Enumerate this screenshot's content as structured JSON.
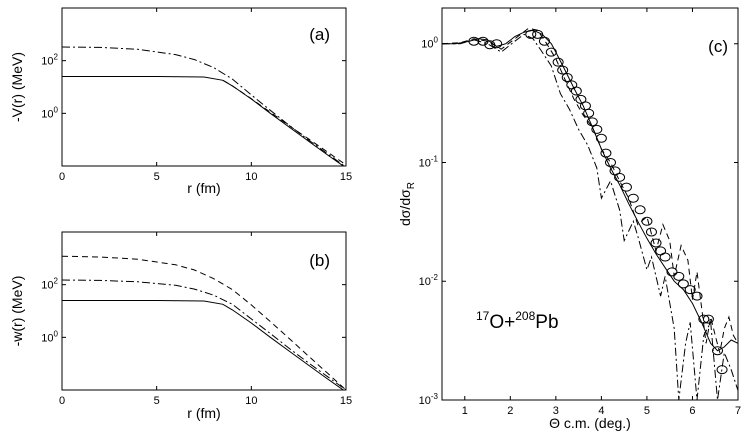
{
  "chart_data": [
    {
      "type": "line",
      "panel_label": "(a)",
      "xlabel": "r (fm)",
      "ylabel": "-V(r) (MeV)",
      "xlim": [
        0,
        15
      ],
      "ylim": [
        0.01,
        10000
      ],
      "yscale": "log",
      "xticks": [
        0,
        5,
        10,
        15
      ],
      "yticks": [
        {
          "value": 1,
          "mantissa": "10",
          "exponent": "0"
        },
        {
          "value": 100,
          "mantissa": "10",
          "exponent": "2"
        }
      ],
      "series": [
        {
          "name": "solid",
          "style": "solid",
          "x": [
            0,
            5,
            7.5,
            8.5,
            9,
            10,
            11,
            12,
            13,
            14,
            15
          ],
          "y": [
            25,
            25,
            24,
            18,
            11,
            3.5,
            1.0,
            0.3,
            0.09,
            0.027,
            0.0085
          ]
        },
        {
          "name": "dash-dot",
          "style": "dashdot",
          "x": [
            0,
            2,
            4,
            6,
            7,
            8,
            9,
            10,
            11,
            12,
            13,
            14,
            15
          ],
          "y": [
            330,
            320,
            270,
            170,
            110,
            55,
            20,
            5,
            1.3,
            0.35,
            0.1,
            0.03,
            0.009
          ]
        },
        {
          "name": "dashed",
          "style": "dashed",
          "x": [
            8.5,
            9,
            10,
            11,
            12,
            13,
            14,
            15
          ],
          "y": [
            18,
            11,
            3.6,
            1.1,
            0.34,
            0.11,
            0.035,
            0.011
          ]
        }
      ]
    },
    {
      "type": "line",
      "panel_label": "(b)",
      "xlabel": "r (fm)",
      "ylabel": "-w(r) (MeV)",
      "xlim": [
        0,
        15
      ],
      "ylim": [
        0.01,
        10000
      ],
      "yscale": "log",
      "xticks": [
        0,
        5,
        10,
        15
      ],
      "yticks": [
        {
          "value": 1,
          "mantissa": "10",
          "exponent": "0"
        },
        {
          "value": 100,
          "mantissa": "10",
          "exponent": "2"
        }
      ],
      "series": [
        {
          "name": "solid",
          "style": "solid",
          "x": [
            0,
            5,
            7.5,
            8.5,
            9,
            10,
            11,
            12,
            13,
            14,
            15
          ],
          "y": [
            25,
            25,
            24,
            18,
            11,
            3.5,
            1.0,
            0.3,
            0.09,
            0.027,
            0.0085
          ]
        },
        {
          "name": "dash-dot",
          "style": "dashdot",
          "x": [
            0,
            2,
            4,
            6,
            7,
            8,
            9,
            10,
            11,
            12,
            13,
            14,
            15
          ],
          "y": [
            150,
            145,
            128,
            95,
            68,
            40,
            18,
            5,
            1.4,
            0.38,
            0.11,
            0.033,
            0.01
          ]
        },
        {
          "name": "dashed",
          "style": "dashed",
          "x": [
            0,
            2,
            4,
            6,
            7,
            8,
            9,
            10,
            11,
            12,
            13,
            14,
            15
          ],
          "y": [
            1200,
            1120,
            930,
            570,
            360,
            170,
            65,
            17,
            4,
            0.9,
            0.2,
            0.045,
            0.01
          ]
        }
      ]
    },
    {
      "type": "line",
      "panel_label": "(c)",
      "annotation": {
        "sup1": "17",
        "base1": "O+",
        "sup2": "208",
        "base2": "Pb"
      },
      "xlabel": "Θ c.m. (deg.)",
      "ylabel": {
        "main": "dσ/dσ",
        "sub": "R"
      },
      "xlim": [
        0.5,
        7
      ],
      "ylim": [
        0.001,
        2
      ],
      "yscale": "log",
      "xticks": [
        1,
        2,
        3,
        4,
        5,
        6,
        7
      ],
      "yticks": [
        {
          "value": 1,
          "mantissa": "10",
          "exponent": "0"
        },
        {
          "value": 0.1,
          "mantissa": "10",
          "exponent": "-1"
        },
        {
          "value": 0.01,
          "mantissa": "10",
          "exponent": "-2"
        },
        {
          "value": 0.001,
          "mantissa": "10",
          "exponent": "-3"
        }
      ],
      "series": [
        {
          "name": "solid",
          "style": "solid",
          "x": [
            0.5,
            0.8,
            1.1,
            1.3,
            1.5,
            1.7,
            1.9,
            2.1,
            2.3,
            2.5,
            2.7,
            2.9,
            3.0,
            3.2,
            3.4,
            3.6,
            3.8,
            4.0,
            4.2,
            4.4,
            4.6,
            4.8,
            5.0,
            5.2,
            5.4,
            5.6,
            5.8,
            6.0,
            6.2,
            6.4,
            6.55,
            6.7,
            6.85,
            7.0
          ],
          "y": [
            1.0,
            1.0,
            1.05,
            1.1,
            1.08,
            0.95,
            1.0,
            1.15,
            1.25,
            1.3,
            1.2,
            1.0,
            0.85,
            0.6,
            0.42,
            0.3,
            0.2,
            0.13,
            0.09,
            0.065,
            0.045,
            0.032,
            0.023,
            0.017,
            0.013,
            0.01,
            0.0085,
            0.0065,
            0.0045,
            0.003,
            0.0026,
            0.0028,
            0.0032,
            0.003
          ]
        },
        {
          "name": "dashed",
          "style": "dashed",
          "x": [
            0.5,
            0.9,
            1.2,
            1.5,
            1.8,
            2.1,
            2.4,
            2.6,
            2.8,
            3.0,
            3.2,
            3.4,
            3.6,
            3.8,
            4.0,
            4.2,
            4.4,
            4.6,
            4.8,
            5.0,
            5.1,
            5.2,
            5.35,
            5.5,
            5.6,
            5.75,
            5.9,
            6.0,
            6.1,
            6.2,
            6.3,
            6.4,
            6.5,
            6.6,
            6.7,
            6.8,
            6.9,
            7.0
          ],
          "y": [
            1.0,
            1.02,
            1.1,
            1.05,
            0.9,
            1.1,
            1.35,
            1.3,
            1.0,
            0.75,
            0.5,
            0.34,
            0.25,
            0.2,
            0.13,
            0.1,
            0.07,
            0.05,
            0.03,
            0.035,
            0.025,
            0.018,
            0.03,
            0.022,
            0.011,
            0.02,
            0.015,
            0.007,
            0.012,
            0.006,
            0.003,
            0.005,
            0.0035,
            0.0025,
            0.004,
            0.005,
            0.0035,
            0.003
          ]
        },
        {
          "name": "dash-dot",
          "style": "dashdot",
          "x": [
            0.5,
            0.9,
            1.2,
            1.5,
            1.8,
            2.1,
            2.3,
            2.5,
            2.7,
            2.9,
            3.1,
            3.3,
            3.5,
            3.7,
            3.9,
            4.0,
            4.2,
            4.4,
            4.5,
            4.7,
            4.8,
            5.0,
            5.1,
            5.3,
            5.4,
            5.6,
            5.7,
            5.85,
            5.95,
            6.1,
            6.25,
            6.4,
            6.55,
            6.7,
            6.85,
            7.0
          ],
          "y": [
            1.0,
            1.0,
            1.08,
            1.0,
            0.85,
            1.05,
            1.2,
            1.1,
            0.85,
            0.65,
            0.38,
            0.28,
            0.19,
            0.14,
            0.09,
            0.05,
            0.07,
            0.04,
            0.022,
            0.032,
            0.024,
            0.0125,
            0.016,
            0.0075,
            0.011,
            0.004,
            0.001,
            0.003,
            0.0045,
            0.001,
            0.0035,
            0.0045,
            0.001,
            0.0025,
            0.0018,
            0.0012
          ]
        }
      ],
      "points": {
        "x": [
          1.2,
          1.4,
          1.55,
          1.7,
          2.45,
          2.6,
          2.75,
          2.9,
          3.05,
          3.15,
          3.25,
          3.35,
          3.45,
          3.55,
          3.65,
          3.72,
          3.8,
          3.9,
          4.0,
          4.1,
          4.2,
          4.3,
          4.4,
          4.55,
          4.7,
          4.85,
          5.0,
          5.1,
          5.2,
          5.3,
          5.4,
          5.55,
          5.7,
          5.8,
          5.95,
          6.1,
          6.25,
          6.35,
          6.55,
          6.65
        ],
        "y": [
          1.05,
          1.05,
          0.98,
          1.0,
          1.2,
          1.2,
          1.05,
          0.85,
          0.7,
          0.6,
          0.52,
          0.45,
          0.4,
          0.34,
          0.3,
          0.26,
          0.22,
          0.19,
          0.16,
          0.12,
          0.1,
          0.085,
          0.075,
          0.062,
          0.05,
          0.04,
          0.032,
          0.026,
          0.021,
          0.018,
          0.016,
          0.012,
          0.011,
          0.0095,
          0.0085,
          0.0075,
          0.0048,
          0.0048,
          0.0026,
          0.0018
        ]
      }
    }
  ]
}
